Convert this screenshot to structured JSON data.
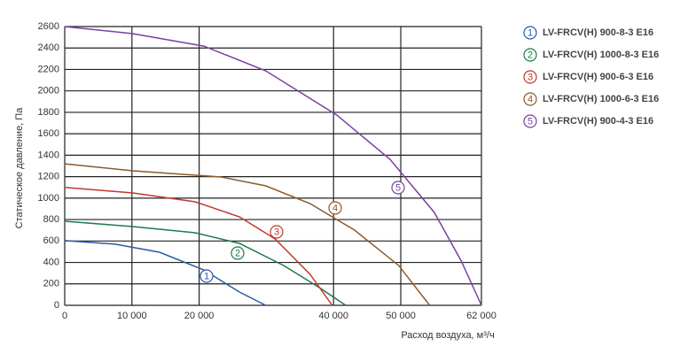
{
  "chart_data": {
    "type": "line",
    "y_label": "Статическое давление, Па",
    "x_label": "Расход воздуха, м³/ч",
    "xlim": [
      0,
      62000
    ],
    "ylim": [
      0,
      2600
    ],
    "xticks": [
      0,
      {
        "value": 10000,
        "label": "10 000"
      },
      {
        "value": 20000,
        "label": "20 000"
      },
      {
        "value": 40000,
        "label": "40 000"
      },
      {
        "value": 50000,
        "label": "50 000"
      },
      {
        "value": 62000,
        "label": "62 000"
      }
    ],
    "yticks": [
      0,
      200,
      400,
      600,
      800,
      1000,
      1200,
      1400,
      1600,
      1800,
      2000,
      2200,
      2400,
      2600
    ],
    "grid": true,
    "legend": "right",
    "series": [
      {
        "name": "LV-FRCV(H) 900-8-3 E16",
        "marker": "1",
        "color": "#2a5aa8",
        "x": [
          0,
          7500,
          14100,
          20700,
          26000,
          29900
        ],
        "values": [
          603,
          570,
          495,
          330,
          124,
          0
        ]
      },
      {
        "name": "LV-FRCV(H) 1000-8-3 E16",
        "marker": "2",
        "color": "#1e7a4a",
        "x": [
          0,
          10100,
          19400,
          26000,
          32600,
          37900,
          41800
        ],
        "values": [
          784,
          735,
          677,
          578,
          371,
          165,
          0
        ]
      },
      {
        "name": "LV-FRCV(H) 900-6-3 E16",
        "marker": "3",
        "color": "#c0392b",
        "x": [
          0,
          10100,
          19400,
          26000,
          31300,
          36500,
          39800
        ],
        "values": [
          1100,
          1048,
          966,
          825,
          619,
          289,
          0
        ]
      },
      {
        "name": "LV-FRCV(H) 1000-6-3 E16",
        "marker": "4",
        "color": "#8b5a2b",
        "x": [
          0,
          10100,
          23300,
          29900,
          36500,
          43100,
          49700,
          54300
        ],
        "values": [
          1320,
          1255,
          1197,
          1114,
          949,
          702,
          371,
          0
        ]
      },
      {
        "name": "LV-FRCV(H) 900-4-3 E16",
        "marker": "5",
        "color": "#7b3fa0",
        "x": [
          0,
          10100,
          20700,
          29900,
          40500,
          48400,
          55000,
          59000,
          62000
        ],
        "values": [
          2600,
          2534,
          2418,
          2187,
          1774,
          1362,
          866,
          413,
          0
        ]
      }
    ]
  }
}
